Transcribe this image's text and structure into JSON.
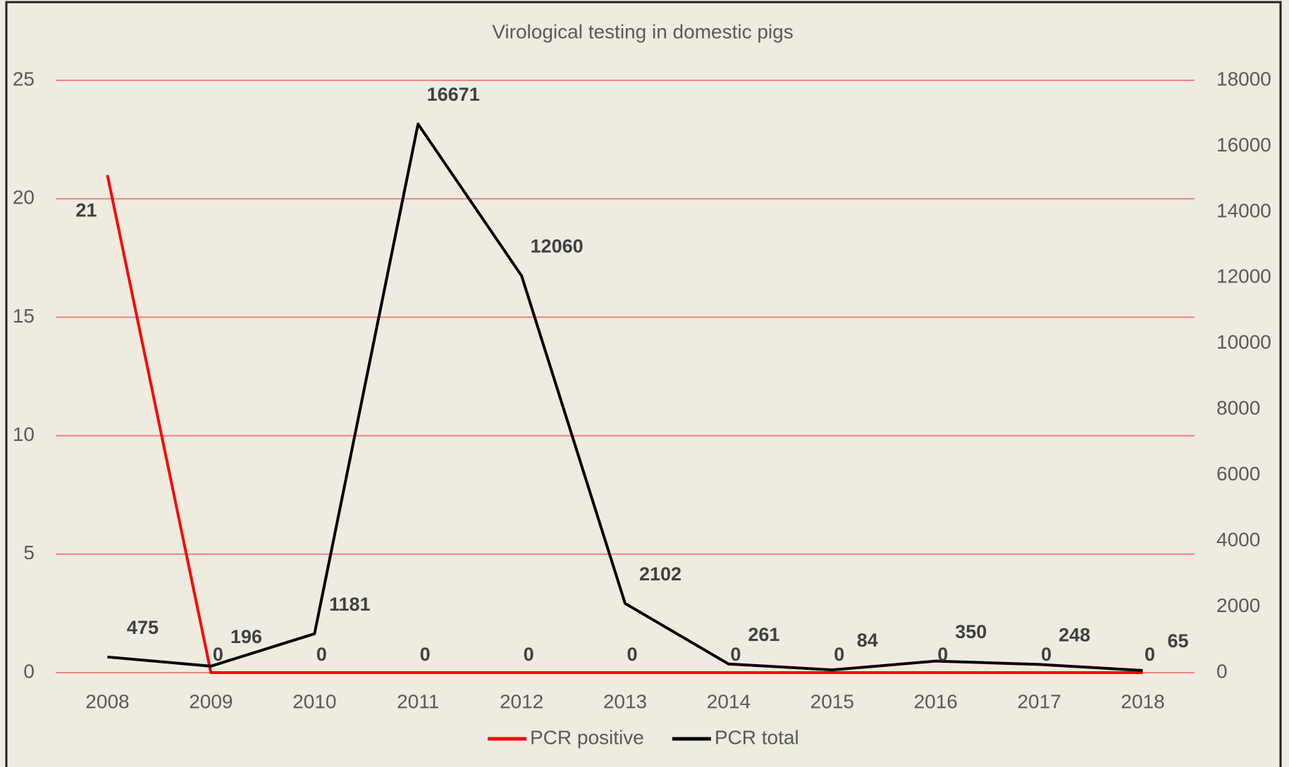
{
  "chart_data": {
    "type": "line",
    "title": "Virological testing in domestic pigs",
    "categories": [
      "2008",
      "2009",
      "2010",
      "2011",
      "2012",
      "2013",
      "2014",
      "2015",
      "2016",
      "2017",
      "2018"
    ],
    "series": [
      {
        "name": "PCR positive",
        "color": "#ff0000",
        "values": [
          21,
          0,
          0,
          0,
          0,
          0,
          0,
          0,
          0,
          0,
          0
        ]
      },
      {
        "name": "PCR total",
        "color": "#000000",
        "axis": "y2",
        "values": [
          475,
          196,
          1181,
          16671,
          12060,
          2102,
          261,
          84,
          350,
          248,
          65
        ]
      }
    ],
    "ylim": [
      0,
      25
    ],
    "yticks": [
      0,
      5,
      10,
      15,
      20,
      25
    ],
    "y2lim": [
      0,
      18000
    ],
    "y2ticks": [
      0,
      2000,
      4000,
      6000,
      8000,
      10000,
      12000,
      14000,
      16000,
      18000
    ],
    "grid": true,
    "grid_color": "#f08080",
    "legend": "bottom"
  }
}
